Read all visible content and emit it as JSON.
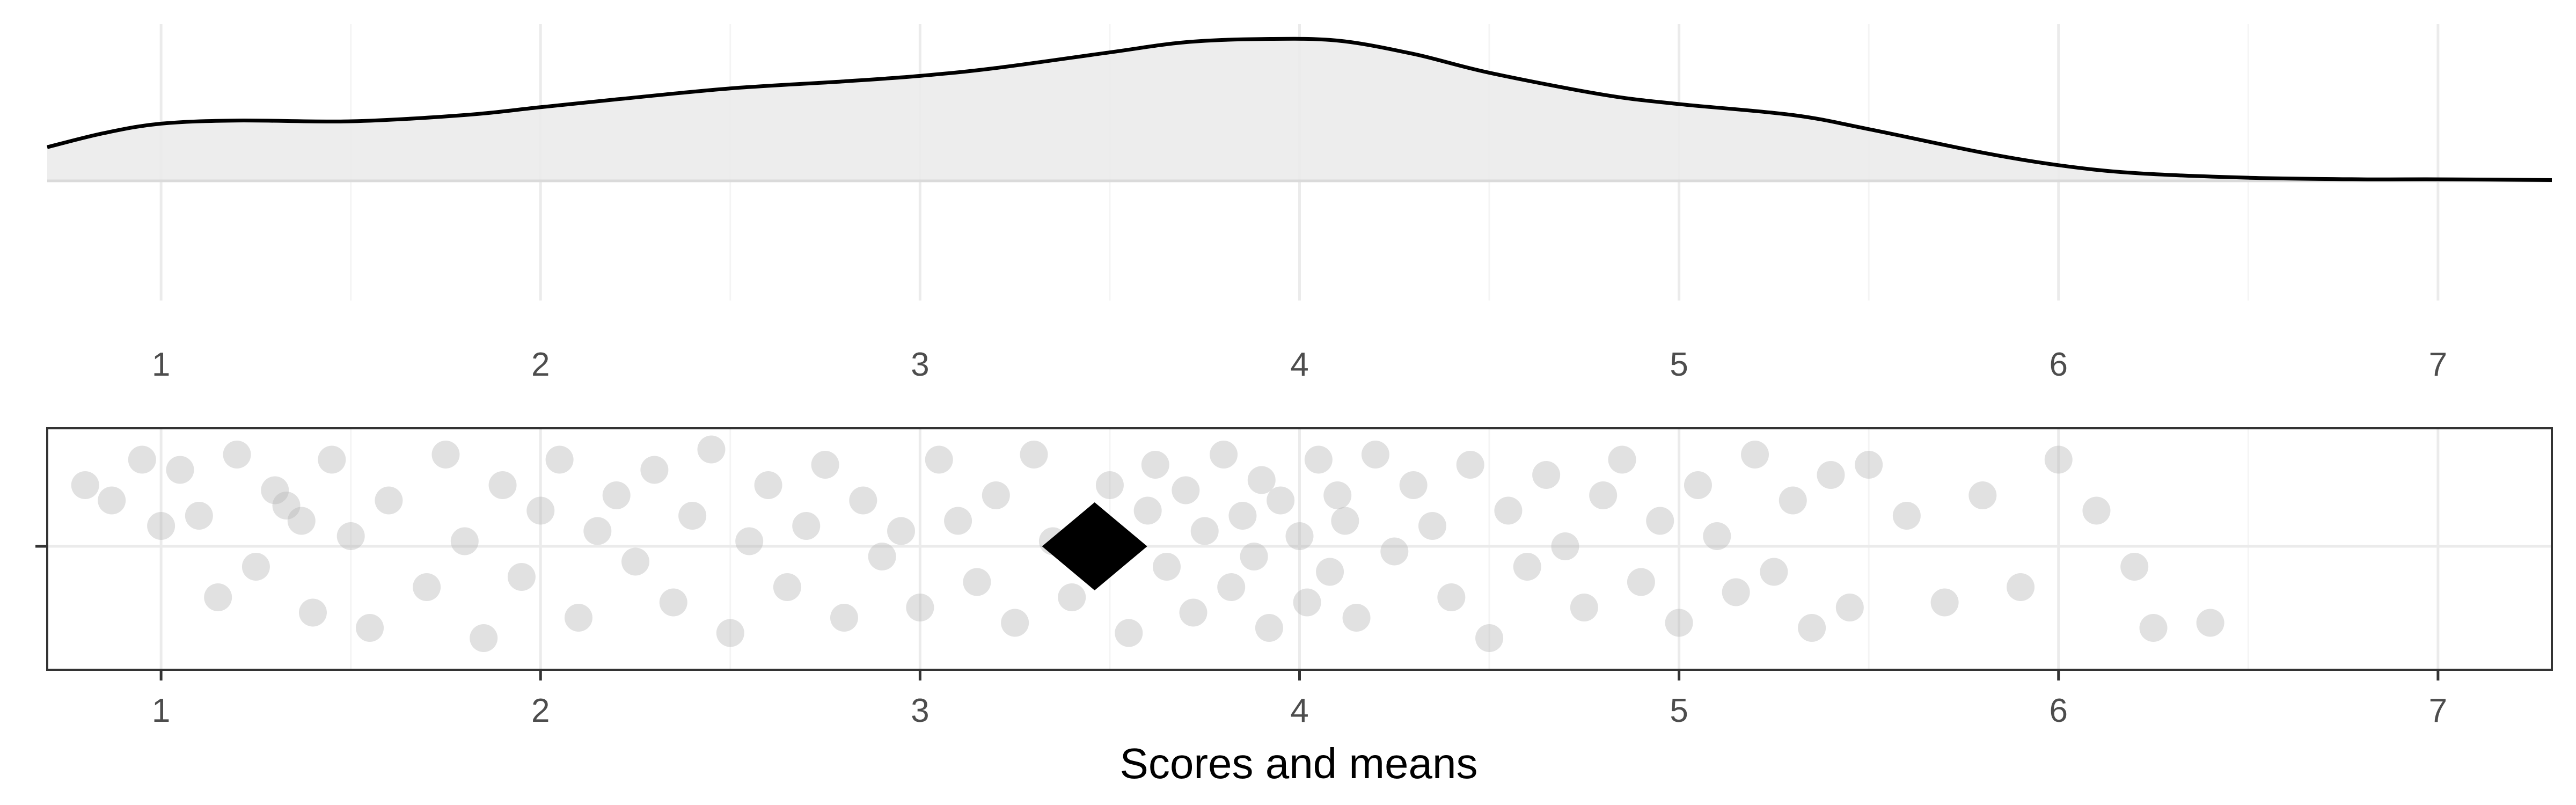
{
  "colors": {
    "background": "#ffffff",
    "grid_major": "#ebebeb",
    "grid_minor": "#f4f4f4",
    "density_fill": "#ebebeb",
    "density_line": "#000000",
    "point": "#b3b3b3",
    "mean_marker": "#000000",
    "panel_border": "#333333",
    "tick_label": "#4d4d4d"
  },
  "chart_data": [
    {
      "type": "area",
      "panel": "top",
      "x": [
        0.7,
        0.85,
        1.0,
        1.2,
        1.5,
        1.8,
        2.0,
        2.2,
        2.5,
        2.8,
        3.0,
        3.2,
        3.5,
        3.7,
        3.9,
        4.1,
        4.3,
        4.5,
        4.8,
        5.0,
        5.3,
        5.5,
        5.8,
        6.0,
        6.2,
        6.5,
        6.8,
        7.0,
        7.3
      ],
      "y": [
        0.215,
        0.305,
        0.365,
        0.385,
        0.38,
        0.42,
        0.47,
        0.52,
        0.59,
        0.635,
        0.67,
        0.72,
        0.82,
        0.885,
        0.905,
        0.895,
        0.81,
        0.69,
        0.55,
        0.49,
        0.42,
        0.33,
        0.18,
        0.1,
        0.05,
        0.02,
        0.01,
        0.01,
        0.005
      ],
      "xlim": [
        0.7,
        7.3
      ],
      "xticks": [
        "1",
        "2",
        "3",
        "4",
        "5",
        "6",
        "7"
      ],
      "grid": true
    },
    {
      "type": "scatter",
      "panel": "bottom",
      "xlabel": "Scores and means",
      "xticks": [
        "1",
        "2",
        "3",
        "4",
        "5",
        "6",
        "7"
      ],
      "xlim": [
        0.7,
        7.3
      ],
      "ylim": [
        -1,
        1
      ],
      "mean": 3.46,
      "points": [
        [
          0.8,
          0.6
        ],
        [
          0.87,
          0.45
        ],
        [
          0.95,
          0.85
        ],
        [
          1.0,
          0.2
        ],
        [
          1.05,
          0.75
        ],
        [
          1.1,
          0.3
        ],
        [
          1.15,
          -0.5
        ],
        [
          1.2,
          0.9
        ],
        [
          1.25,
          -0.2
        ],
        [
          1.3,
          0.55
        ],
        [
          1.33,
          0.4
        ],
        [
          1.37,
          0.25
        ],
        [
          1.4,
          -0.65
        ],
        [
          1.45,
          0.85
        ],
        [
          1.5,
          0.1
        ],
        [
          1.55,
          -0.8
        ],
        [
          1.6,
          0.45
        ],
        [
          1.7,
          -0.4
        ],
        [
          1.75,
          0.9
        ],
        [
          1.8,
          0.05
        ],
        [
          1.85,
          -0.9
        ],
        [
          1.9,
          0.6
        ],
        [
          1.95,
          -0.3
        ],
        [
          2.0,
          0.35
        ],
        [
          2.05,
          0.85
        ],
        [
          2.1,
          -0.7
        ],
        [
          2.15,
          0.15
        ],
        [
          2.2,
          0.5
        ],
        [
          2.25,
          -0.15
        ],
        [
          2.3,
          0.75
        ],
        [
          2.35,
          -0.55
        ],
        [
          2.4,
          0.3
        ],
        [
          2.45,
          0.95
        ],
        [
          2.5,
          -0.85
        ],
        [
          2.55,
          0.05
        ],
        [
          2.6,
          0.6
        ],
        [
          2.65,
          -0.4
        ],
        [
          2.7,
          0.2
        ],
        [
          2.75,
          0.8
        ],
        [
          2.8,
          -0.7
        ],
        [
          2.85,
          0.45
        ],
        [
          2.9,
          -0.1
        ],
        [
          2.95,
          0.15
        ],
        [
          3.0,
          -0.6
        ],
        [
          3.05,
          0.85
        ],
        [
          3.1,
          0.25
        ],
        [
          3.15,
          -0.35
        ],
        [
          3.2,
          0.5
        ],
        [
          3.25,
          -0.75
        ],
        [
          3.3,
          0.9
        ],
        [
          3.35,
          0.05
        ],
        [
          3.4,
          -0.5
        ],
        [
          3.5,
          0.6
        ],
        [
          3.55,
          -0.85
        ],
        [
          3.6,
          0.35
        ],
        [
          3.62,
          0.8
        ],
        [
          3.65,
          -0.2
        ],
        [
          3.7,
          0.55
        ],
        [
          3.72,
          -0.65
        ],
        [
          3.75,
          0.15
        ],
        [
          3.8,
          0.9
        ],
        [
          3.82,
          -0.4
        ],
        [
          3.85,
          0.3
        ],
        [
          3.88,
          -0.1
        ],
        [
          3.9,
          0.65
        ],
        [
          3.92,
          -0.8
        ],
        [
          3.95,
          0.45
        ],
        [
          4.0,
          0.1
        ],
        [
          4.02,
          -0.55
        ],
        [
          4.05,
          0.85
        ],
        [
          4.08,
          -0.25
        ],
        [
          4.1,
          0.5
        ],
        [
          4.12,
          0.25
        ],
        [
          4.15,
          -0.7
        ],
        [
          4.2,
          0.9
        ],
        [
          4.25,
          -0.05
        ],
        [
          4.3,
          0.6
        ],
        [
          4.35,
          0.2
        ],
        [
          4.4,
          -0.5
        ],
        [
          4.45,
          0.8
        ],
        [
          4.5,
          -0.9
        ],
        [
          4.55,
          0.35
        ],
        [
          4.6,
          -0.2
        ],
        [
          4.65,
          0.7
        ],
        [
          4.7,
          0.0
        ],
        [
          4.75,
          -0.6
        ],
        [
          4.8,
          0.5
        ],
        [
          4.85,
          0.85
        ],
        [
          4.9,
          -0.35
        ],
        [
          4.95,
          0.25
        ],
        [
          5.0,
          -0.75
        ],
        [
          5.05,
          0.6
        ],
        [
          5.1,
          0.1
        ],
        [
          5.15,
          -0.45
        ],
        [
          5.2,
          0.9
        ],
        [
          5.25,
          -0.25
        ],
        [
          5.3,
          0.45
        ],
        [
          5.35,
          -0.8
        ],
        [
          5.4,
          0.7
        ],
        [
          5.45,
          -0.6
        ],
        [
          5.5,
          0.8
        ],
        [
          5.6,
          0.3
        ],
        [
          5.7,
          -0.55
        ],
        [
          5.8,
          0.5
        ],
        [
          5.9,
          -0.4
        ],
        [
          6.0,
          0.85
        ],
        [
          6.1,
          0.35
        ],
        [
          6.2,
          -0.2
        ],
        [
          6.25,
          -0.8
        ],
        [
          6.4,
          -0.75
        ]
      ]
    }
  ]
}
